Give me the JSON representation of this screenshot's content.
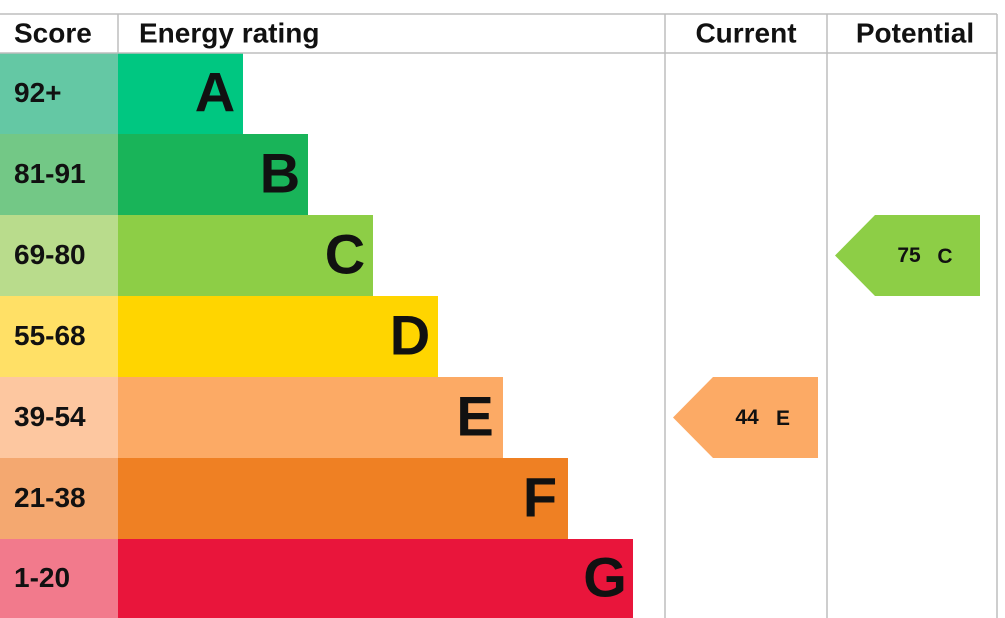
{
  "header": {
    "score": "Score",
    "rating": "Energy rating",
    "current": "Current",
    "potential": "Potential"
  },
  "bands": [
    {
      "range": "92+",
      "letter": "A",
      "color": "#00c781",
      "score_color": "#64c8a4"
    },
    {
      "range": "81-91",
      "letter": "B",
      "color": "#19b459",
      "score_color": "#73c886"
    },
    {
      "range": "69-80",
      "letter": "C",
      "color": "#8dce46",
      "score_color": "#b9dc8c"
    },
    {
      "range": "55-68",
      "letter": "D",
      "color": "#ffd500",
      "score_color": "#ffe066"
    },
    {
      "range": "39-54",
      "letter": "E",
      "color": "#fcaa65",
      "score_color": "#fdc7a0"
    },
    {
      "range": "21-38",
      "letter": "F",
      "color": "#ef8023",
      "score_color": "#f4a870"
    },
    {
      "range": "1-20",
      "letter": "G",
      "color": "#e9153b",
      "score_color": "#f27a8c"
    }
  ],
  "current": {
    "value": 44,
    "letter": "E"
  },
  "potential": {
    "value": 75,
    "letter": "C"
  }
}
